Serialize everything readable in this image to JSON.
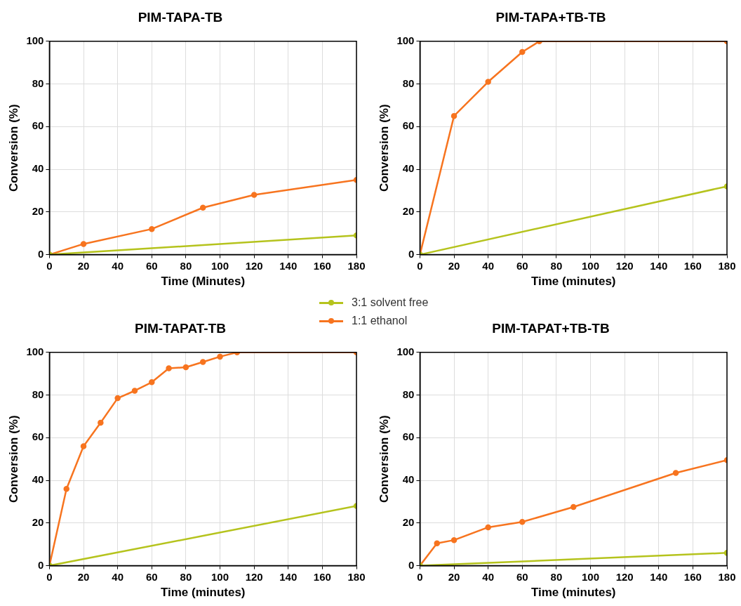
{
  "chart_data": [
    {
      "type": "line",
      "title": "PIM-TAPA-TB",
      "xlabel": "Time (Minutes)",
      "ylabel": "Conversion (%)",
      "xlim": [
        0,
        180
      ],
      "ylim": [
        0,
        100
      ],
      "xticks": [
        0,
        20,
        40,
        60,
        80,
        100,
        120,
        140,
        160,
        180
      ],
      "yticks": [
        0,
        20,
        40,
        60,
        80,
        100
      ],
      "grid": true,
      "marker": "circle",
      "legend": "bottom right",
      "series": [
        {
          "name": "3:1 solvent free",
          "color": "#b5c31d",
          "x": [
            0,
            180
          ],
          "values": [
            0,
            9
          ]
        },
        {
          "name": "1:1 ethanol",
          "color": "#f7741f",
          "x": [
            0,
            20,
            60,
            90,
            120,
            180
          ],
          "values": [
            0,
            5,
            12,
            22,
            28,
            35
          ]
        }
      ]
    },
    {
      "type": "line",
      "title": "PIM-TAPA+TB-TB",
      "xlabel": "Time (minutes)",
      "ylabel": "Conversion (%)",
      "xlim": [
        0,
        180
      ],
      "ylim": [
        0,
        100
      ],
      "xticks": [
        0,
        20,
        40,
        60,
        80,
        100,
        120,
        140,
        160,
        180
      ],
      "yticks": [
        0,
        20,
        40,
        60,
        80,
        100
      ],
      "grid": true,
      "marker": "circle",
      "series": [
        {
          "color": "#b5c31d",
          "x": [
            0,
            180
          ],
          "values": [
            0,
            32
          ]
        },
        {
          "color": "#f7741f",
          "x": [
            0,
            20,
            40,
            60,
            70,
            180
          ],
          "values": [
            0,
            65,
            81,
            95,
            100,
            100
          ]
        }
      ]
    },
    {
      "type": "line",
      "title": "PIM-TAPAT-TB",
      "xlabel": "Time (minutes)",
      "ylabel": "Conversion (%)",
      "xlim": [
        0,
        180
      ],
      "ylim": [
        0,
        100
      ],
      "xticks": [
        0,
        20,
        40,
        60,
        80,
        100,
        120,
        140,
        160,
        180
      ],
      "yticks": [
        0,
        20,
        40,
        60,
        80,
        100
      ],
      "grid": true,
      "marker": "circle",
      "series": [
        {
          "color": "#b5c31d",
          "x": [
            0,
            180
          ],
          "values": [
            0,
            28
          ]
        },
        {
          "color": "#f7741f",
          "x": [
            0,
            10,
            20,
            30,
            40,
            50,
            60,
            70,
            80,
            90,
            100,
            110,
            180
          ],
          "values": [
            0,
            36,
            56,
            67,
            78.5,
            82,
            86,
            92.5,
            93,
            95.5,
            98,
            100,
            100
          ]
        }
      ]
    },
    {
      "type": "line",
      "title": "PIM-TAPAT+TB-TB",
      "xlabel": "Time (minutes)",
      "ylabel": "Conversion (%)",
      "xlim": [
        0,
        180
      ],
      "ylim": [
        0,
        100
      ],
      "xticks": [
        0,
        20,
        40,
        60,
        80,
        100,
        120,
        140,
        160,
        180
      ],
      "yticks": [
        0,
        20,
        40,
        60,
        80,
        100
      ],
      "grid": true,
      "marker": "circle",
      "series": [
        {
          "color": "#b5c31d",
          "x": [
            0,
            180
          ],
          "values": [
            0,
            6
          ]
        },
        {
          "color": "#f7741f",
          "x": [
            0,
            10,
            20,
            40,
            60,
            90,
            150,
            180
          ],
          "values": [
            0,
            10.5,
            12,
            18,
            20.5,
            27.5,
            43.5,
            49.5
          ]
        }
      ]
    }
  ]
}
